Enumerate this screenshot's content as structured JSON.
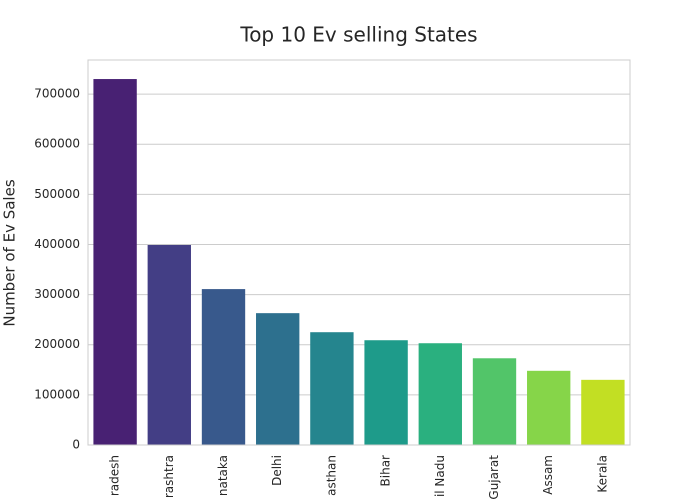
{
  "chart_data": {
    "type": "bar",
    "title": "Top 10 Ev selling States",
    "ylabel": "Number of Ev Sales",
    "categories": [
      "radesh",
      "rashtra",
      "nataka",
      "Delhi",
      "asthan",
      "Bihar",
      "il Nadu",
      "Gujarat",
      "Assam",
      "Kerala"
    ],
    "values": [
      730000,
      399000,
      311000,
      263000,
      225000,
      209000,
      203000,
      173000,
      148000,
      130000
    ],
    "colors": [
      "#482173",
      "#433e85",
      "#38598c",
      "#2d708e",
      "#25858e",
      "#1e9b8a",
      "#2ab07f",
      "#52c569",
      "#86d549",
      "#c2df23"
    ],
    "ylim": [
      0,
      768000
    ],
    "yticks": [
      0,
      100000,
      200000,
      300000,
      400000,
      500000,
      600000,
      700000
    ],
    "grid": true
  }
}
